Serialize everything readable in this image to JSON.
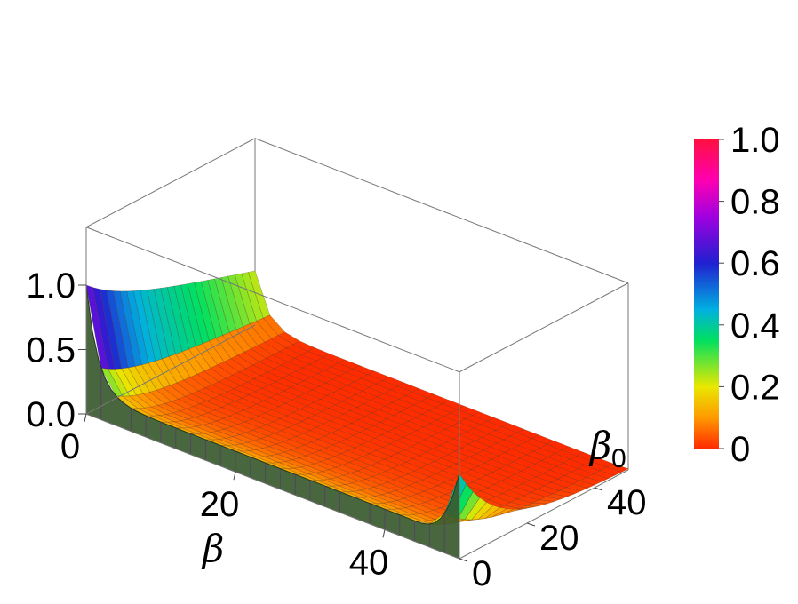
{
  "chart_data": {
    "type": "surface3d",
    "title": "",
    "xlabel": "β",
    "ylabel": "β",
    "ylabel_subscript": "0",
    "zlabel": "",
    "x_range": [
      0,
      50
    ],
    "y_range": [
      0,
      50
    ],
    "z_range": [
      0,
      1
    ],
    "x_ticks": [
      "0",
      "20",
      "40"
    ],
    "x_tick_values": [
      0,
      20,
      40
    ],
    "y_ticks": [
      "0",
      "20",
      "40"
    ],
    "y_tick_values": [
      0,
      20,
      40
    ],
    "z_ticks": [
      "0.0",
      "0.5",
      "1.0"
    ],
    "z_tick_values": [
      0,
      0.5,
      1
    ],
    "surface_samples": {
      "beta_values": [
        0,
        2.5,
        5,
        7.5,
        10,
        12.5,
        15,
        20,
        30,
        40,
        50
      ],
      "at_beta0_0": [
        1.0,
        0.34,
        0.27,
        0.24,
        0.22,
        0.21,
        0.2,
        0.19,
        0.18,
        0.17,
        0.16
      ],
      "at_beta0_50": [
        0.42,
        0.2,
        0.1,
        0.05,
        0.03,
        0.02,
        0.01,
        0.0,
        0.0,
        0.0,
        0.0
      ]
    },
    "colorbar": {
      "ticks": [
        "0",
        "0.2",
        "0.4",
        "0.6",
        "0.8",
        "1.0"
      ],
      "tick_values": [
        0,
        0.2,
        0.4,
        0.6,
        0.8,
        1.0
      ],
      "colors": [
        "#ff2a00",
        "#ff9a00",
        "#e8e800",
        "#00e060",
        "#00b0e0",
        "#2020d0",
        "#a000e0",
        "#ff00b0",
        "#ff1040"
      ]
    },
    "grid": false,
    "colorbar_position": "right"
  }
}
